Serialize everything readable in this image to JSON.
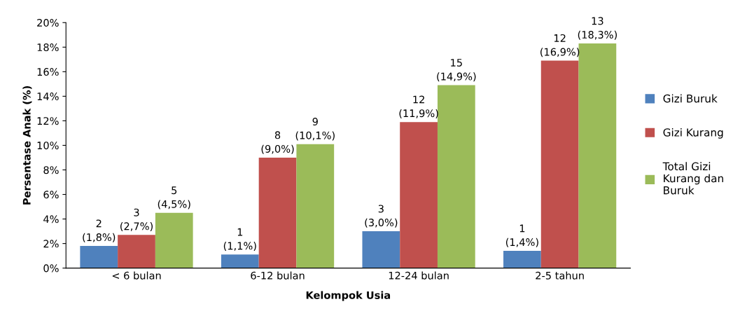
{
  "chart_data": {
    "type": "bar",
    "xlabel": "Kelompok Usia",
    "ylabel": "Persentase Anak (%)",
    "categories": [
      "< 6 bulan",
      "6-12 bulan",
      "12-24 bulan",
      "2-5 tahun"
    ],
    "series": [
      {
        "name": "Gizi Buruk",
        "color": "#4f81bd",
        "values": [
          1.8,
          1.1,
          3.0,
          1.4
        ],
        "value_labels": [
          "2\n(1,8%)",
          "1\n(1,1%)",
          "3\n(3,0%)",
          "1\n(1,4%)"
        ]
      },
      {
        "name": "Gizi Kurang",
        "color": "#c0504d",
        "values": [
          2.7,
          9.0,
          11.9,
          16.9
        ],
        "value_labels": [
          "3\n(2,7%)",
          "8\n(9,0%)",
          "12\n(11,9%)",
          "12\n(16,9%)"
        ]
      },
      {
        "name": "Total Gizi\nKurang dan\nBuruk",
        "color": "#9bbb59",
        "values": [
          4.5,
          10.1,
          14.9,
          18.3
        ],
        "value_labels": [
          "5\n(4,5%)",
          "9\n(10,1%)",
          "15\n(14,9%)",
          "13\n(18,3%)"
        ]
      }
    ],
    "ylim": [
      0,
      20
    ],
    "yticks": [
      {
        "value": 0,
        "label": "0%"
      },
      {
        "value": 2,
        "label": "2%"
      },
      {
        "value": 4,
        "label": "4%"
      },
      {
        "value": 6,
        "label": "6%"
      },
      {
        "value": 8,
        "label": "8%"
      },
      {
        "value": 10,
        "label": "10%"
      },
      {
        "value": 12,
        "label": "12%"
      },
      {
        "value": 14,
        "label": "14%"
      },
      {
        "value": 16,
        "label": "16%"
      },
      {
        "value": 18,
        "label": "18%"
      },
      {
        "value": 20,
        "label": "20%"
      }
    ],
    "grid": false,
    "legend": "right"
  }
}
